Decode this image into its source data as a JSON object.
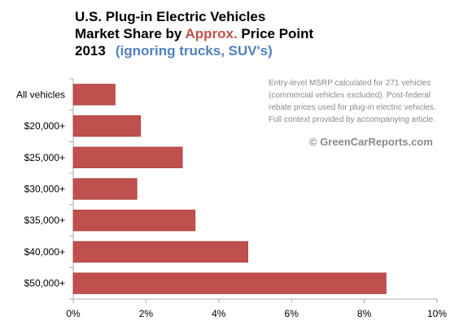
{
  "title_lines": {
    "line1": "U.S. Plug-in Electric Vehicles",
    "line2_prefix": "Market Share by ",
    "line2_accent": "Approx.",
    "line2_suffix": " Price Point",
    "line3_year": "2013",
    "line3_sub": "(ignoring trucks, SUV's)"
  },
  "annotation": {
    "lines": [
      "Entry-level MSRP calculated for 271 vehicles",
      "(commercial vehicles excluded). Post-federal",
      "rebate prices used for plug-in electric vehicles.",
      "Full context provided by accompanying article."
    ],
    "credit": "© GreenCarReports.com"
  },
  "colors": {
    "bar": "#c0504d",
    "accent": "#c0504d",
    "subtitle": "#4f81bd",
    "note": "#8a8a8a",
    "axis": "#aaaaaa"
  },
  "chart_data": {
    "type": "bar",
    "orientation": "horizontal",
    "categories": [
      "All vehicles",
      "$20,000+",
      "$25,000+",
      "$30,000+",
      "$35,000+",
      "$40,000+",
      "$50,000+"
    ],
    "values": [
      1.15,
      1.85,
      3.0,
      1.75,
      3.35,
      4.8,
      8.6
    ],
    "xlim": [
      0,
      10
    ],
    "xticks": [
      0,
      2,
      4,
      6,
      8,
      10
    ],
    "xtick_labels": [
      "0%",
      "2%",
      "4%",
      "6%",
      "8%",
      "10%"
    ],
    "grid": false
  }
}
